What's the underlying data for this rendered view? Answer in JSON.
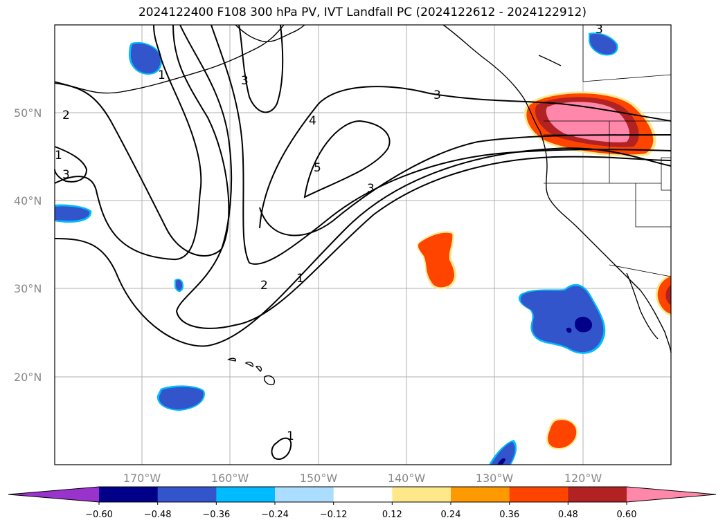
{
  "title": "2024122400 F108 300 hPa PV, IVT Landfall PC (2024122612 - 2024122912)",
  "map": {
    "lat_labels": [
      "50°N",
      "40°N",
      "30°N",
      "20°N"
    ],
    "lon_labels": [
      "170°W",
      "160°W",
      "150°W",
      "140°W",
      "130°W",
      "120°W"
    ],
    "grid_color": "#b0b0b0"
  },
  "contours": {
    "labels": [
      "1",
      "2",
      "3",
      "3",
      "3",
      "4",
      "5",
      "3",
      "2",
      "1",
      "1",
      "1",
      "3"
    ]
  },
  "colorbar": {
    "ticks": [
      "−0.60",
      "−0.48",
      "−0.36",
      "−0.24",
      "−0.12",
      "0.12",
      "0.24",
      "0.36",
      "0.48",
      "0.60"
    ],
    "colors": [
      "#9933cc",
      "#000088",
      "#3355cc",
      "#00bbff",
      "#aaddff",
      "#ffffff",
      "#ffe88a",
      "#ff9900",
      "#ff4400",
      "#b22222",
      "#ff88aa"
    ]
  }
}
